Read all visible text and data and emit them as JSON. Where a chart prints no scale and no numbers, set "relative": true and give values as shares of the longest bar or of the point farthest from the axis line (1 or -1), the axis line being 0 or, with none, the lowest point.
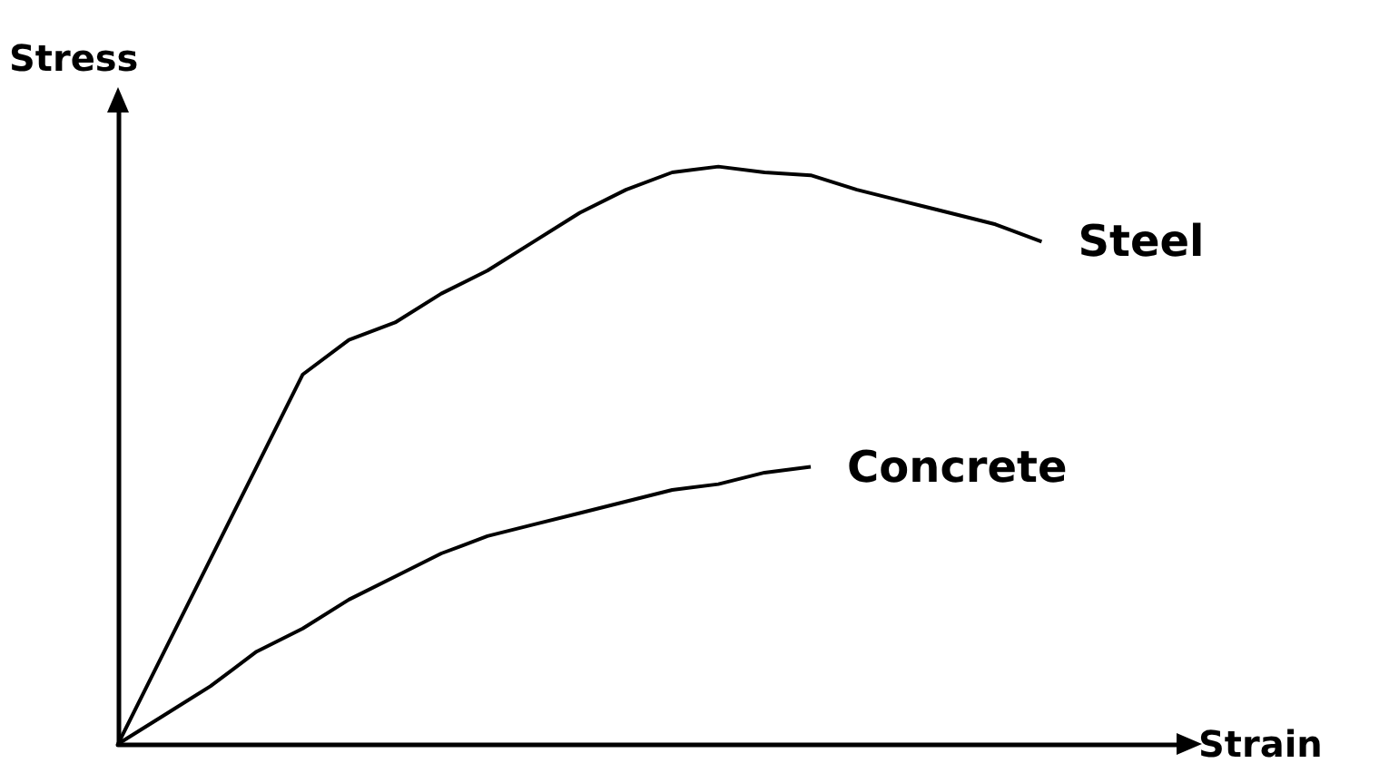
{
  "chart_data": {
    "type": "line",
    "relative": true,
    "xlabel": "Strain",
    "ylabel": "Stress",
    "categories": [
      null,
      null,
      null,
      null,
      null,
      null,
      null,
      null,
      null,
      null,
      null,
      null,
      null,
      null,
      null,
      null,
      null,
      null,
      null,
      null,
      null,
      null,
      null,
      null
    ],
    "series": [
      {
        "name": "Steel",
        "color": "#000000",
        "values": [
          0,
          0.16,
          0.32,
          0.48,
          0.64,
          0.7,
          0.73,
          0.78,
          0.82,
          0.87,
          0.92,
          0.96,
          0.99,
          1,
          0.99,
          0.985,
          0.96,
          0.94,
          0.92,
          0.9,
          0.87,
          null,
          null,
          null
        ]
      },
      {
        "name": "Concrete",
        "color": "#000000",
        "values": [
          0,
          0.05,
          0.1,
          0.16,
          0.2,
          0.25,
          0.29,
          0.33,
          0.36,
          0.38,
          0.4,
          0.42,
          0.44,
          0.45,
          0.47,
          0.48,
          null,
          null,
          null,
          null,
          null,
          null,
          null,
          null
        ]
      }
    ],
    "legend": false,
    "grid": false,
    "marker": "none",
    "line_style": "solid"
  }
}
